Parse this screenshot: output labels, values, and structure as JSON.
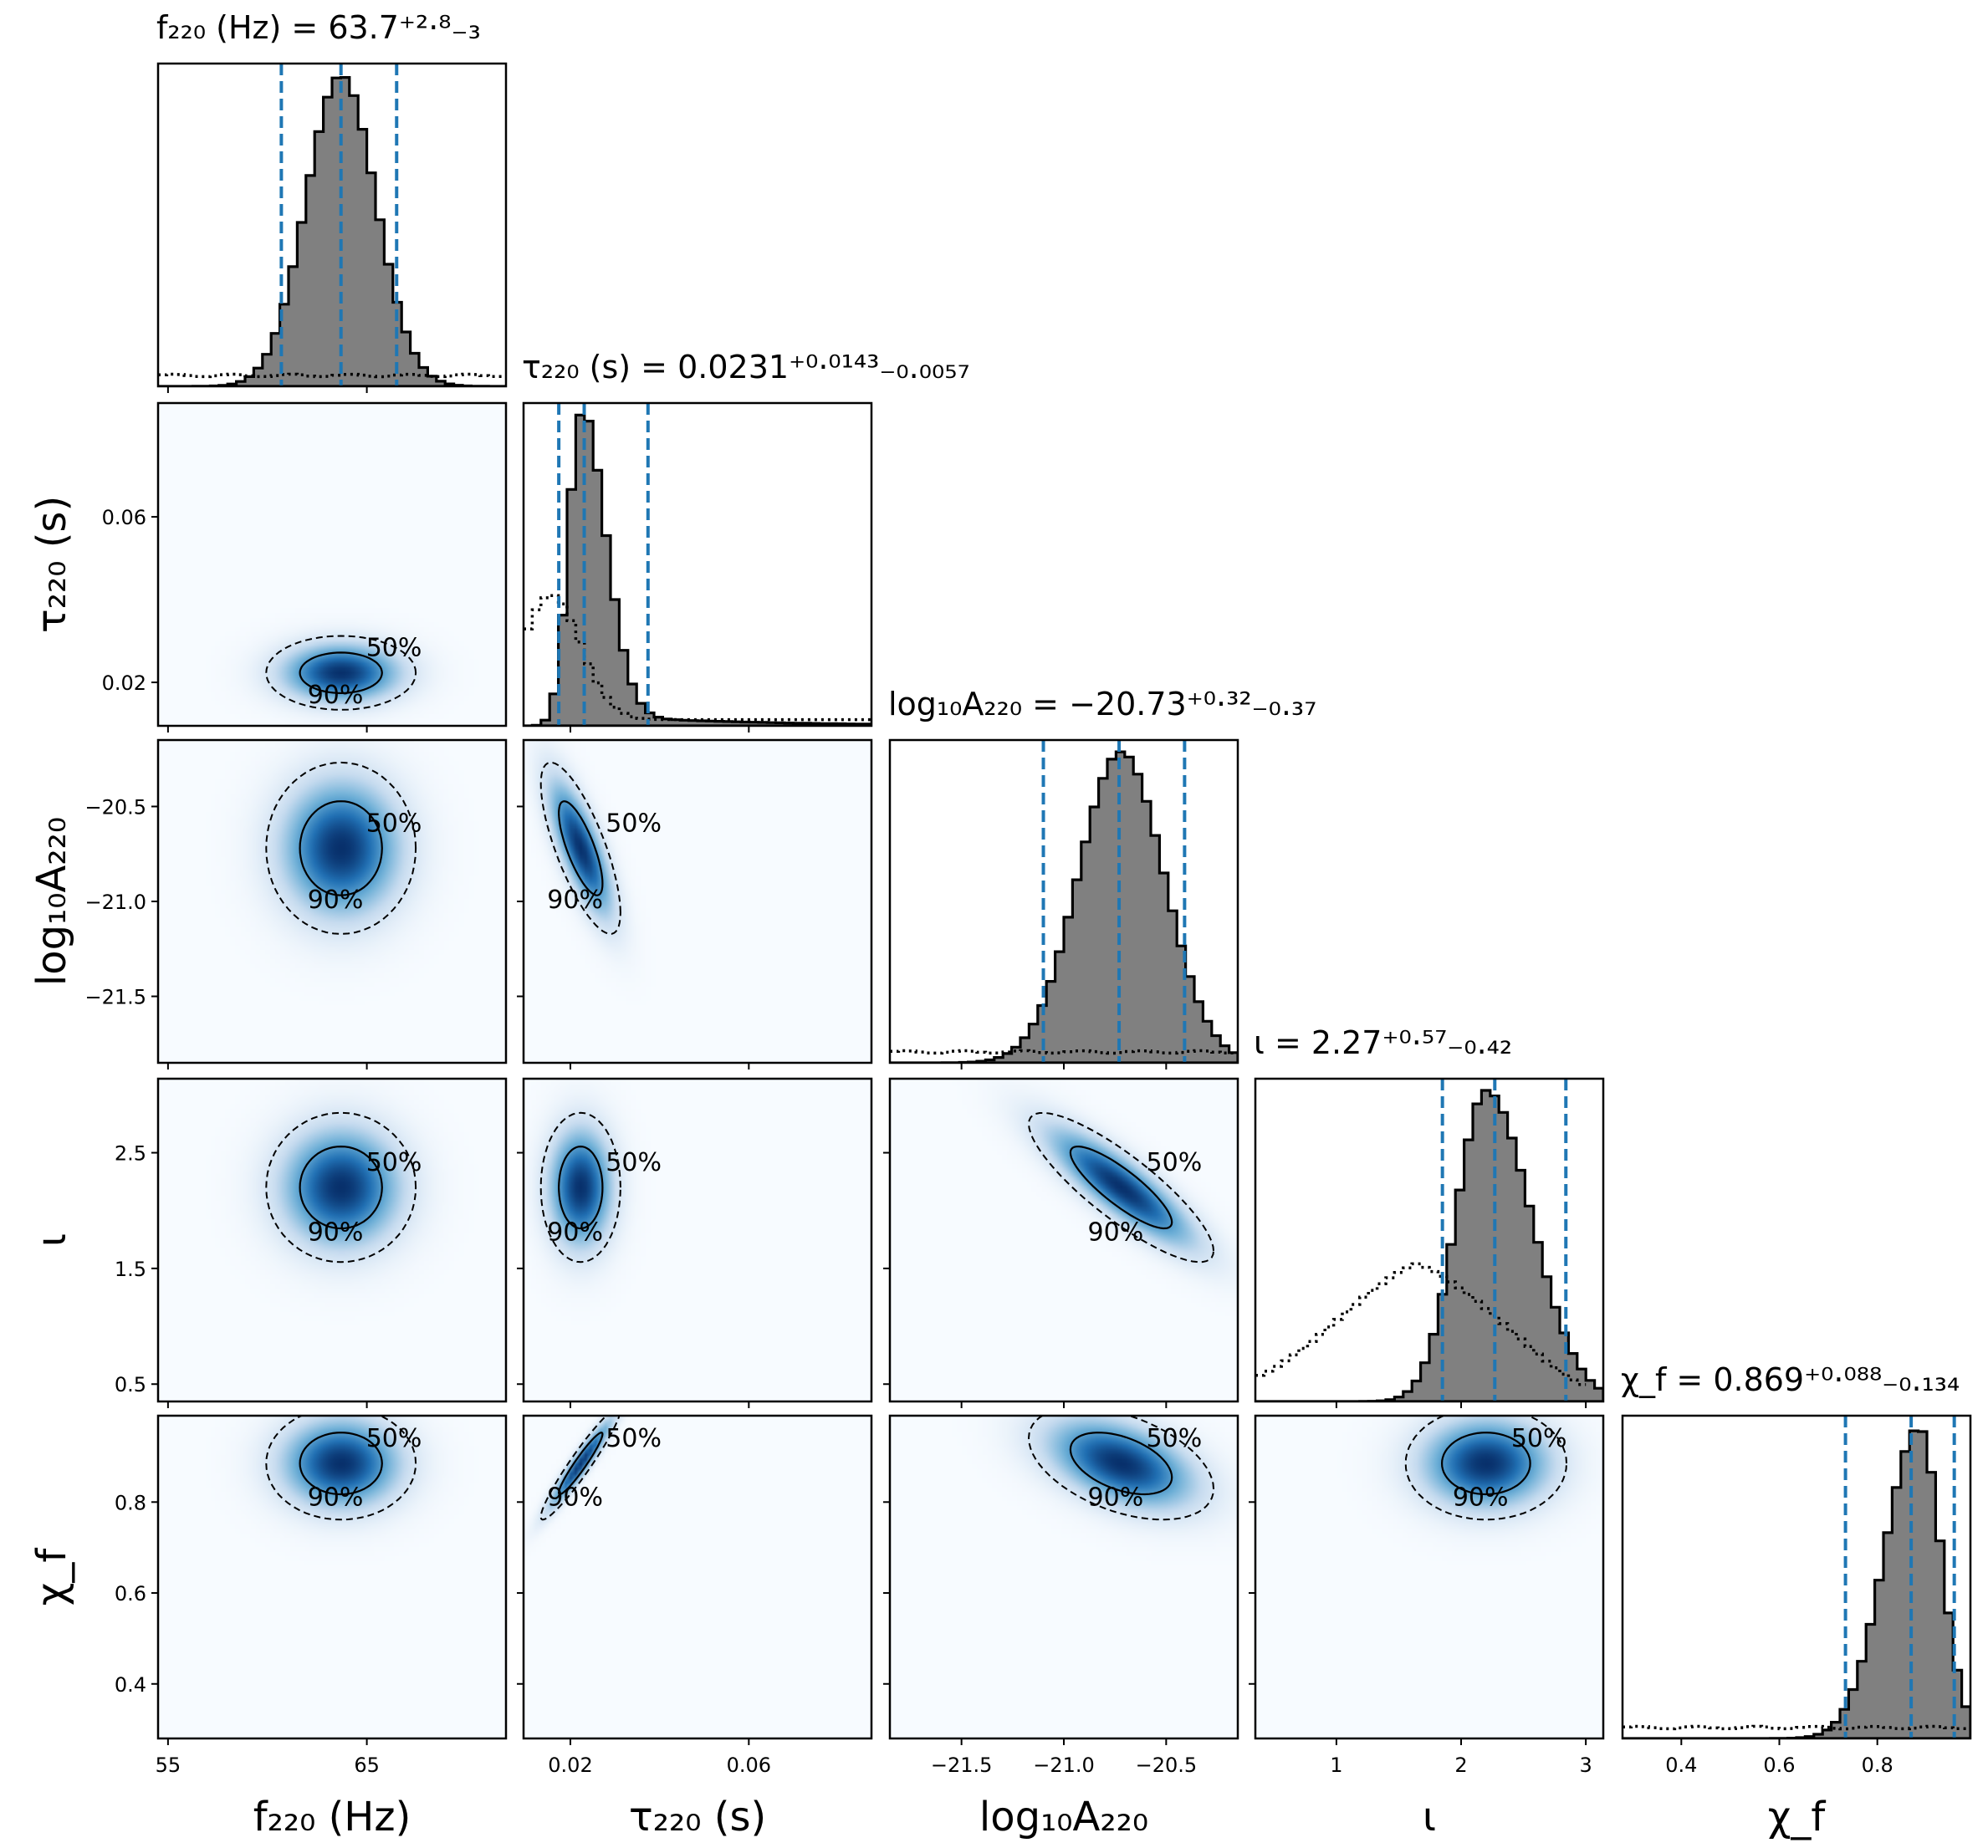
{
  "figure": {
    "params": [
      "f220",
      "tau220",
      "log10A220",
      "iota",
      "chif"
    ],
    "axis_labels": {
      "f220": "f₂₂₀ (Hz)",
      "tau220": "τ₂₂₀ (s)",
      "log10A220": "log₁₀A₂₂₀",
      "iota": "ι",
      "chif": "χ_f"
    },
    "diag_titles": {
      "f220": "f₂₂₀ (Hz) = 63.7⁺²·⁸₋₃",
      "tau220": "τ₂₂₀ (s) = 0.0231⁺⁰·⁰¹⁴³₋₀.₀₀₅₇",
      "log10A220": "log₁₀A₂₂₀ = −20.73⁺⁰·³²₋₀.₃₇",
      "iota": "ι = 2.27⁺⁰·⁵⁷₋₀.₄₂",
      "chif": "χ_f = 0.869⁺⁰·⁰⁸⁸₋₀.₁₃₄"
    },
    "tick_labels": {
      "f220": [
        "55",
        "65"
      ],
      "tau220": [
        "0.02",
        "0.06"
      ],
      "log10A220": [
        "−21.5",
        "−21.0",
        "−20.5"
      ],
      "iota": [
        "1",
        "2",
        "3",
        "0.5",
        "1.5",
        "2.5"
      ],
      "chif": [
        "0.4",
        "0.6",
        "0.8"
      ]
    },
    "contour_labels": [
      "50%",
      "90%"
    ]
  },
  "chart_data": {
    "type": "corner",
    "parameters": [
      {
        "key": "f220",
        "range": [
          54.5,
          72.0
        ],
        "ticks": [
          55,
          65
        ],
        "median": 63.7,
        "lower": 60.7,
        "upper": 66.5,
        "prior": "flat"
      },
      {
        "key": "tau220",
        "range": [
          0.0095,
          0.0875
        ],
        "ticks": [
          0.02,
          0.06
        ],
        "median": 0.0231,
        "lower": 0.0174,
        "upper": 0.0374,
        "prior": "peaked"
      },
      {
        "key": "log10A220",
        "range": [
          -21.85,
          -20.15
        ],
        "ticks": [
          -21.5,
          -21.0,
          -20.5
        ],
        "median": -20.73,
        "lower": -21.1,
        "upper": -20.41,
        "prior": "flat"
      },
      {
        "key": "iota",
        "range": [
          0.35,
          3.14
        ],
        "ticks_x": [
          1,
          2,
          3
        ],
        "ticks_y": [
          0.5,
          1.5,
          2.5
        ],
        "median": 2.27,
        "lower": 1.85,
        "upper": 2.84,
        "prior": "sine"
      },
      {
        "key": "chif",
        "range": [
          0.28,
          0.99
        ],
        "ticks": [
          0.4,
          0.6,
          0.8
        ],
        "median": 0.869,
        "lower": 0.735,
        "upper": 0.957,
        "prior": "flat"
      }
    ],
    "posterior_shape": {
      "f220": {
        "type": "normal",
        "mu": 63.7,
        "sigma": 1.75
      },
      "tau220": {
        "type": "skew",
        "mode": 0.0223,
        "sl": 0.0028,
        "sr": 0.0055,
        "tail": 0.035
      },
      "log10A220": {
        "type": "normal",
        "mu": -20.72,
        "sigma": 0.21
      },
      "iota": {
        "type": "skew",
        "mode": 2.2,
        "sl": 0.24,
        "sr": 0.36,
        "tail": 0
      },
      "chif": {
        "type": "skew",
        "mode": 0.885,
        "sl": 0.07,
        "sr": 0.045,
        "tail": 0
      }
    },
    "correlations": {
      "tau220|log10A220": -0.75,
      "log10A220|iota": -0.85,
      "log10A220|chif": -0.45,
      "tau220|chif": 0.95
    },
    "colors": {
      "hist_fill": "#808080",
      "hist_edge": "#000000",
      "quantile_line": "#1f77b4",
      "density_cmap": [
        "#f7fbff",
        "#c6dbef",
        "#6baed6",
        "#2171b5",
        "#08306b"
      ]
    },
    "contour_levels": [
      "50%",
      "90%"
    ],
    "histogram_bins": 40
  }
}
